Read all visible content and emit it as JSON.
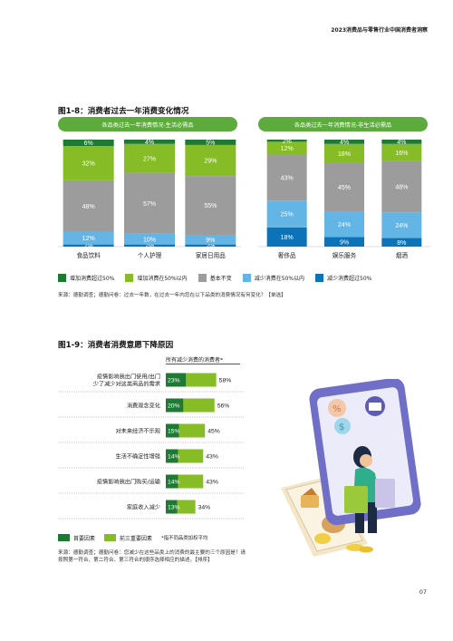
{
  "header": {
    "report_title": "2023消费品与零售行业中国消费者洞察"
  },
  "figure_1_8": {
    "title": "图1-8：消费者过去一年消费变化情况",
    "left_panel_title": "各品类过去一年消费情况-生活必需品",
    "right_panel_title": "各品类过去一年消费情况-非生活必需品",
    "source": "来源：德勤调查；德勤问卷：过去一年数，在过去一年内您在以下品类的消费情况有何变化？【单选】"
  },
  "figure_1_9": {
    "title": "图1-9：消费者消费意愿下降原因",
    "header": "所有减少消费的消费者*",
    "legend_primary": "首要因素",
    "legend_top3": "前三重要因素",
    "legend_note": "*指不同品类加权平均",
    "source": "来源：德勤调查；德勤问卷：您减少在这些品类上的消费的最主要的三个原因是？请按照第一符合、第二符合、第三符合的顺序选择相应的描述。【排序】"
  },
  "page_number": "07",
  "colors": {
    "dark_green": "#1e7a33",
    "light_green": "#86bc25",
    "gray": "#9c9c9c",
    "light_blue": "#62b5e5",
    "dark_blue": "#0d73b8",
    "pill_green": "#5cab3c"
  },
  "chart_data": [
    {
      "type": "bar",
      "stacked": true,
      "title": "各品类过去一年消费情况-生活必需品",
      "categories": [
        "食品饮料",
        "个人护理",
        "家居日用品"
      ],
      "series": [
        {
          "name": "增加消费超过50%",
          "color": "#1e7a33",
          "values": [
            6,
            4,
            5
          ]
        },
        {
          "name": "增加消费在50%以内",
          "color": "#86bc25",
          "values": [
            32,
            27,
            29
          ]
        },
        {
          "name": "基本不变",
          "color": "#9c9c9c",
          "values": [
            48,
            57,
            55
          ]
        },
        {
          "name": "减少消费在50%以内",
          "color": "#62b5e5",
          "values": [
            12,
            10,
            9
          ]
        },
        {
          "name": "减少消费超过50%",
          "color": "#0d73b8",
          "values": [
            2,
            2,
            2
          ]
        }
      ],
      "labels": [
        [
          "6%",
          "4%",
          "5%"
        ],
        [
          "32%",
          "27%",
          "29%"
        ],
        [
          "48%",
          "57%",
          "55%"
        ],
        [
          "12%",
          "10%",
          "9%"
        ],
        [
          "2%",
          "2%",
          "2%"
        ]
      ],
      "ylim": [
        0,
        100
      ]
    },
    {
      "type": "bar",
      "stacked": true,
      "title": "各品类过去一年消费情况-非生活必需品",
      "categories": [
        "奢侈品",
        "娱乐服务",
        "烟酒"
      ],
      "series": [
        {
          "name": "增加消费超过50%",
          "color": "#1e7a33",
          "values": [
            2,
            4,
            4
          ]
        },
        {
          "name": "增加消费在50%以内",
          "color": "#86bc25",
          "values": [
            12,
            18,
            16
          ]
        },
        {
          "name": "基本不变",
          "color": "#9c9c9c",
          "values": [
            43,
            45,
            48
          ]
        },
        {
          "name": "减少消费在50%以内",
          "color": "#62b5e5",
          "values": [
            25,
            24,
            24
          ]
        },
        {
          "name": "减少消费超过50%",
          "color": "#0d73b8",
          "values": [
            18,
            9,
            8
          ]
        }
      ],
      "labels": [
        [
          "2%",
          "4%",
          "4%"
        ],
        [
          "12%",
          "18%",
          "16%"
        ],
        [
          "43%",
          "45%",
          "48%"
        ],
        [
          "25%",
          "24%",
          "24%"
        ],
        [
          "18%",
          "9%",
          "8%"
        ]
      ],
      "ylim": [
        0,
        100
      ]
    },
    {
      "type": "bar",
      "orientation": "horizontal",
      "title": "所有减少消费的消费者*",
      "categories": [
        "疫情影响我出门使用/出门少了减少对这类商品的需求",
        "消费观念变化",
        "对未来经济不乐观",
        "生活不确定性增强",
        "疫情影响我出门购买/运输",
        "家庭收入减少"
      ],
      "series": [
        {
          "name": "首要因素",
          "color": "#1e7a33",
          "values": [
            23,
            20,
            15,
            14,
            14,
            13
          ]
        },
        {
          "name": "前三重要因素",
          "color": "#86bc25",
          "values": [
            58,
            56,
            45,
            43,
            43,
            34
          ]
        }
      ],
      "primary_labels": [
        "23%",
        "20%",
        "15%",
        "14%",
        "14%",
        "13%"
      ],
      "top3_labels": [
        "58%",
        "56%",
        "45%",
        "43%",
        "43%",
        "34%"
      ],
      "xlim": [
        0,
        100
      ]
    }
  ]
}
